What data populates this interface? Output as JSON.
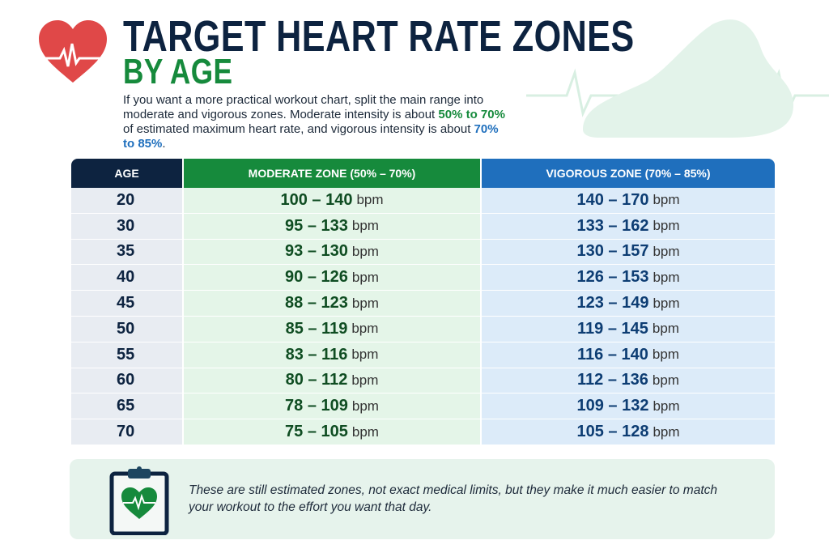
{
  "header": {
    "title_line1": "TARGET HEART RATE ZONES",
    "title_line2": "BY AGE",
    "intro_part1": "If you want a more practical workout chart, split the main range into moderate and vigorous zones. Moderate intensity is about ",
    "intro_moderate": "50% to 70%",
    "intro_part2": " of estimated maximum heart rate, and vigorous intensity is about ",
    "intro_vigorous": "70% to 85%",
    "intro_end": "."
  },
  "table": {
    "headers": [
      "AGE",
      "MODERATE ZONE (50% – 70%)",
      "VIGOROUS ZONE  (70% – 85%)"
    ],
    "unit": "bpm",
    "rows": [
      {
        "age": "20",
        "moderate": "100 – 140",
        "vigorous": "140 – 170"
      },
      {
        "age": "30",
        "moderate": "95 – 133",
        "vigorous": "133 – 162"
      },
      {
        "age": "35",
        "moderate": "93 – 130",
        "vigorous": "130 – 157"
      },
      {
        "age": "40",
        "moderate": "90 – 126",
        "vigorous": "126 – 153"
      },
      {
        "age": "45",
        "moderate": "88 – 123",
        "vigorous": "123 – 149"
      },
      {
        "age": "50",
        "moderate": "85 – 119",
        "vigorous": "119 – 145"
      },
      {
        "age": "55",
        "moderate": "83 – 116",
        "vigorous": "116 – 140"
      },
      {
        "age": "60",
        "moderate": "80 – 112",
        "vigorous": "112 – 136"
      },
      {
        "age": "65",
        "moderate": "78 – 109",
        "vigorous": "109 – 132"
      },
      {
        "age": "70",
        "moderate": "75 – 105",
        "vigorous": "105 – 128"
      }
    ]
  },
  "note": {
    "text": "These are still estimated zones, not exact medical limits, but they make it much easier to match your workout to the effort you want that day.",
    "icon": "clipboard-heart-icon"
  },
  "colors": {
    "navy": "#0d2340",
    "green": "#168a3c",
    "blue": "#1f6fbd",
    "heart_red": "#e04848"
  }
}
